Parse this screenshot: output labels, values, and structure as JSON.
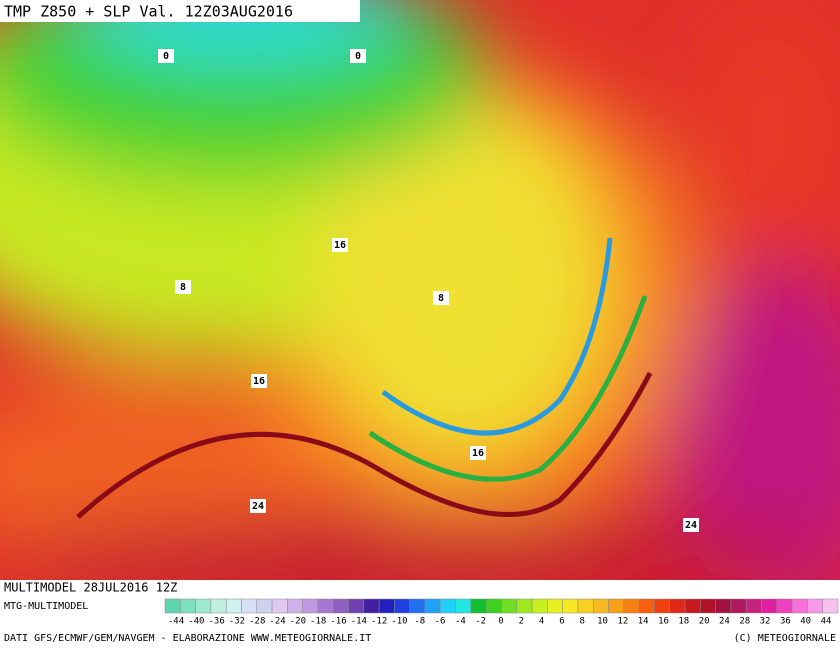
{
  "header": {
    "title": "TMP Z850 + SLP Val. 12Z03AUG2016"
  },
  "map": {
    "contour_labels": [
      "0",
      "0",
      "8",
      "8",
      "16",
      "16",
      "16",
      "24",
      "24"
    ]
  },
  "footer": {
    "model_run": "MULTIMODEL 28JUL2016 12Z",
    "model": "MTG-MULTIMODEL",
    "credits": "DATI GFS/ECMWF/GEM/NAVGEM - ELABORAZIONE WWW.METEOGIORNALE.IT",
    "copyright": "(C) METEOGIORNALE"
  },
  "colorbar": {
    "colors": [
      "#5fd6b0",
      "#7fe0c0",
      "#9fe8d0",
      "#bff0e0",
      "#d0f0f0",
      "#d8e0f8",
      "#d0d0f0",
      "#e0c8f0",
      "#d0b0e8",
      "#c098e0",
      "#a878d0",
      "#9060c0",
      "#7040b0",
      "#4020a0",
      "#2020c0",
      "#2040e0",
      "#2070f0",
      "#20a0f8",
      "#20d0f8",
      "#20e8e0",
      "#10c030",
      "#40d020",
      "#70e020",
      "#a0e820",
      "#c8f020",
      "#e8f020",
      "#f8e820",
      "#f8d020",
      "#f8b820",
      "#f8a018",
      "#f88010",
      "#f86010",
      "#f04010",
      "#e02818",
      "#c81820",
      "#b01028",
      "#a01040",
      "#b01860",
      "#c82080",
      "#e020a0",
      "#f040c0",
      "#f870d8",
      "#f898e8",
      "#f8c0f0"
    ],
    "labels": [
      "-44",
      "-40",
      "-36",
      "-32",
      "-28",
      "-24",
      "-20",
      "-18",
      "-16",
      "-14",
      "-12",
      "-10",
      "-8",
      "-6",
      "-4",
      "-2",
      "0",
      "2",
      "4",
      "6",
      "8",
      "10",
      "12",
      "14",
      "16",
      "18",
      "20",
      "24",
      "28",
      "32",
      "36",
      "40",
      "44"
    ]
  }
}
